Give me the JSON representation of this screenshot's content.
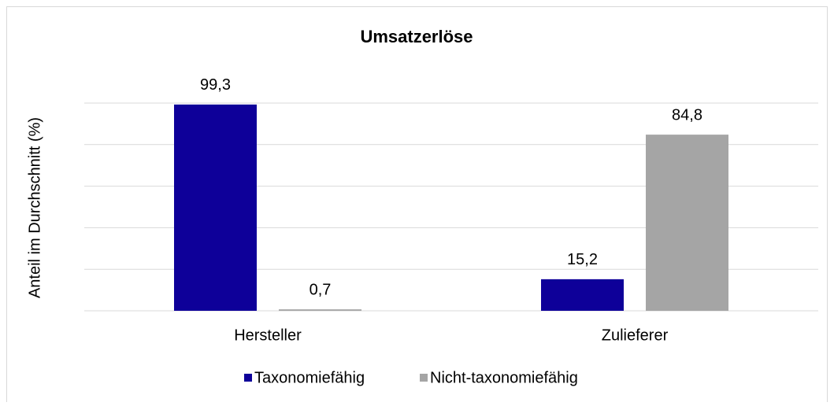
{
  "chart_data": {
    "type": "bar",
    "title": "Umsatzerlöse",
    "y_label": "Anteil im Durchschnitt (%)",
    "categories": [
      "Hersteller",
      "Zulieferer"
    ],
    "series": [
      {
        "name": "Taxonomiefähig",
        "color": "#0e0099",
        "values": [
          99.3,
          15.2
        ],
        "value_labels": [
          "99,3",
          "15,2"
        ]
      },
      {
        "name": "Nicht-taxonomiefähig",
        "color": "#a5a5a5",
        "values": [
          0.7,
          84.8
        ],
        "value_labels": [
          "0,7",
          "84,8"
        ]
      }
    ],
    "ylim": [
      0,
      100
    ],
    "yticks": [
      0,
      20,
      40,
      60,
      80,
      100
    ],
    "grid": true,
    "legend": "bottom"
  }
}
